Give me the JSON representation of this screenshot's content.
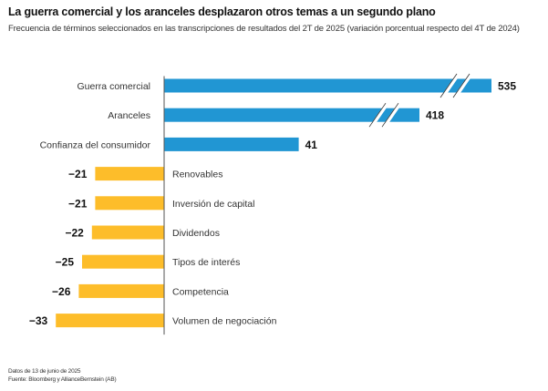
{
  "chart_data": {
    "type": "bar",
    "orientation": "horizontal",
    "title": "La guerra comercial y los aranceles desplazaron otros temas a un segundo plano",
    "subtitle": "Frecuencia de términos seleccionados en las transcripciones de resultados del 2T de 2025 (variación porcentual respecto del 4T de 2024)",
    "xlabel": "",
    "ylabel": "",
    "grid": false,
    "legend": "none",
    "categories": [
      "Guerra comercial",
      "Aranceles",
      "Confianza del consumidor",
      "Renovables",
      "Inversión de capital",
      "Dividendos",
      "Tipos de interés",
      "Competencia",
      "Volumen de negociación"
    ],
    "values": [
      535,
      418,
      41,
      -21,
      -21,
      -22,
      -25,
      -26,
      -33
    ],
    "value_labels": [
      "535",
      "418",
      "41",
      "−21",
      "−21",
      "−22",
      "−25",
      "−26",
      "−33"
    ],
    "broken_axis_bars": [
      "Guerra comercial",
      "Aranceles"
    ],
    "colors": {
      "positive": "#2196d3",
      "negative": "#fdbd2a",
      "axis": "#555555"
    }
  },
  "footer": {
    "date_note": "Datos de 13 de junio de 2025",
    "source": "Fuente: Bloomberg y AllianceBernstein (AB)"
  }
}
